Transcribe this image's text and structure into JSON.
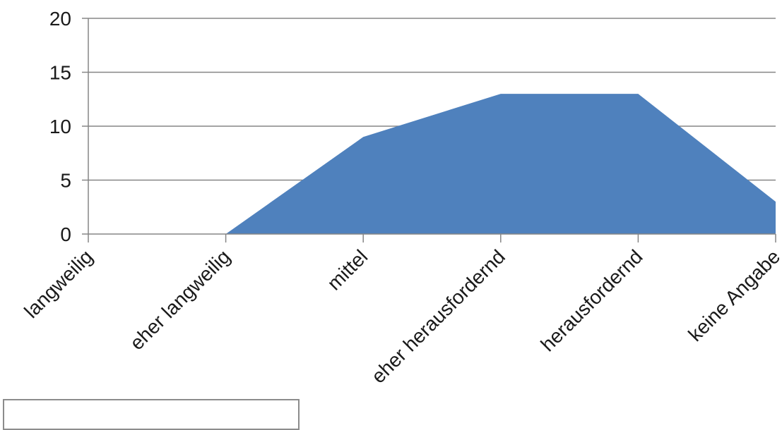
{
  "chart_data": {
    "type": "area",
    "title": "",
    "xlabel": "",
    "ylabel": "",
    "categories": [
      "langweilig",
      "eher langweilig",
      "mittel",
      "eher herausfordernd",
      "herausfordernd",
      "keine Angabe"
    ],
    "values": [
      0,
      0,
      9,
      13,
      13,
      3
    ],
    "ylim": [
      0,
      20
    ],
    "yticks": [
      0,
      5,
      10,
      15,
      20
    ],
    "grid": true,
    "legend": "none",
    "colors": {
      "area": "#4f81bd",
      "grid": "#868686",
      "axis": "#868686"
    }
  }
}
